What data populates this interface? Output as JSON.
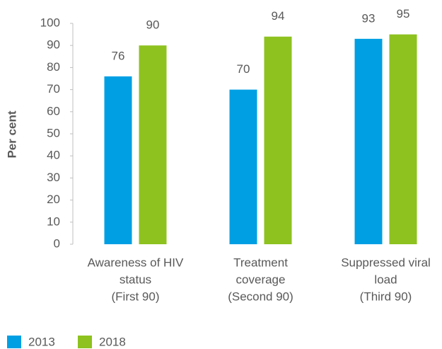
{
  "chart_data": {
    "type": "bar",
    "y_axis_label": "Per cent",
    "categories": [
      [
        "Awareness of HIV",
        "status",
        "(First 90)"
      ],
      [
        "Treatment",
        "coverage",
        "(Second 90)"
      ],
      [
        "Suppressed viral",
        "load",
        "(Third 90)"
      ]
    ],
    "series": [
      {
        "name": "2013",
        "color": "#009fe3",
        "values": [
          76,
          70,
          93
        ]
      },
      {
        "name": "2018",
        "color": "#8dc21f",
        "values": [
          90,
          94,
          95
        ]
      }
    ],
    "ylim": [
      0,
      100
    ],
    "yticks": [
      0,
      10,
      20,
      30,
      40,
      50,
      60,
      70,
      80,
      90,
      100
    ],
    "legend": "bottom-left"
  }
}
